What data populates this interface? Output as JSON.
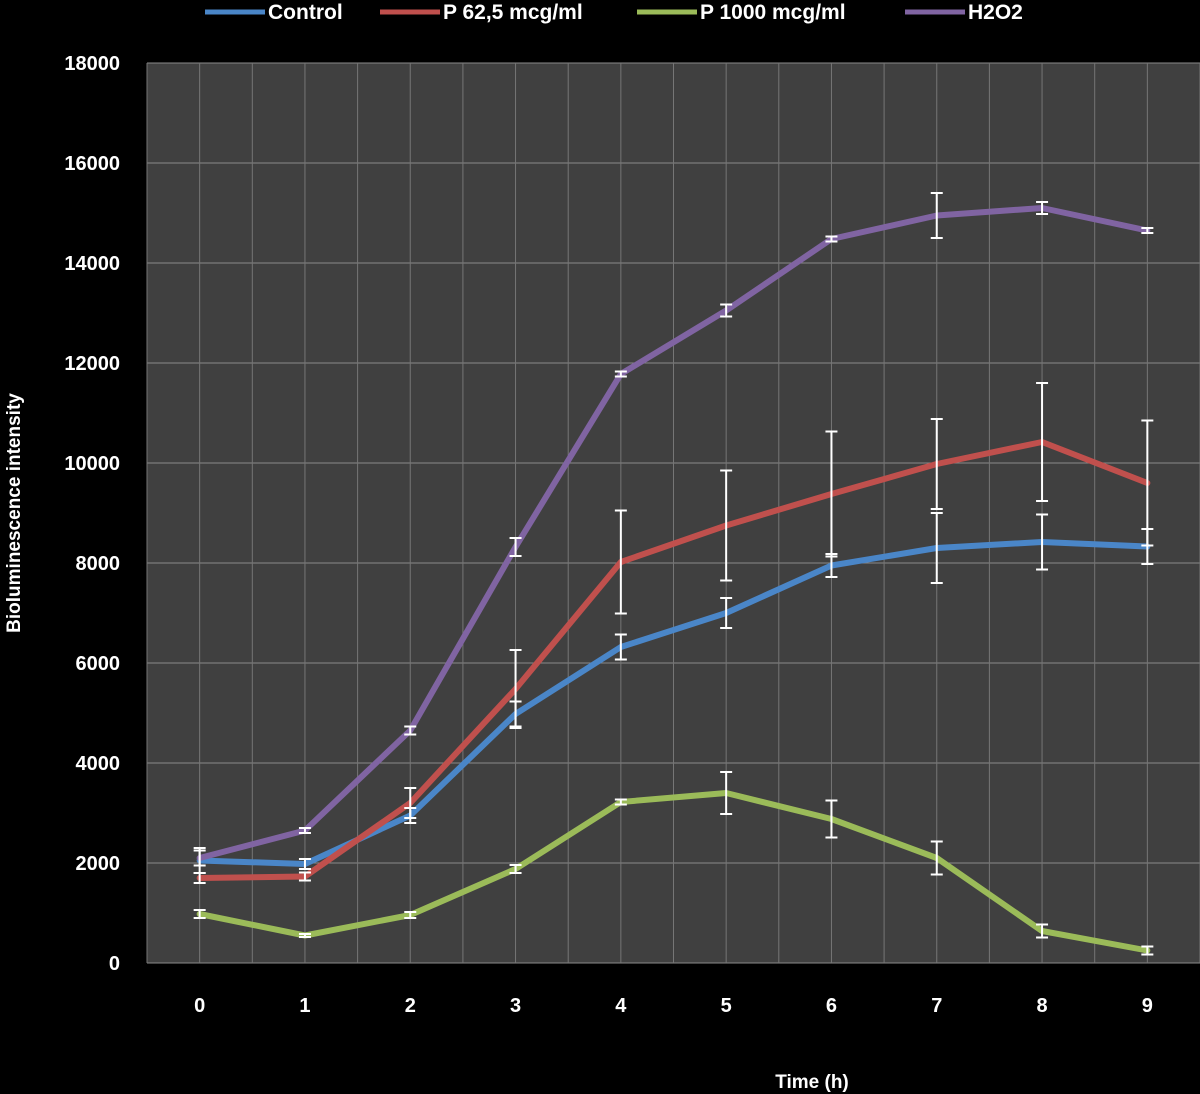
{
  "chart_data": {
    "type": "line",
    "title": "",
    "xlabel": "Time (h)",
    "ylabel": "Bioluminescence intensity",
    "x": [
      0,
      1,
      2,
      3,
      4,
      5,
      6,
      7,
      8,
      9
    ],
    "xlim": [
      -0.5,
      9.5
    ],
    "ylim": [
      0,
      18000
    ],
    "yticks": [
      0,
      2000,
      4000,
      6000,
      8000,
      10000,
      12000,
      14000,
      16000,
      18000
    ],
    "grid": true,
    "legend": "top",
    "error_bars": true,
    "series": [
      {
        "name": "Control",
        "color": "#4a86c8",
        "values": [
          2050,
          1980,
          2950,
          4980,
          6320,
          7000,
          7950,
          8300,
          8420,
          8330
        ],
        "errors": [
          250,
          100,
          150,
          250,
          250,
          300,
          230,
          700,
          550,
          350
        ]
      },
      {
        "name": "P 62,5 mcg/ml",
        "color": "#c0504d",
        "values": [
          1700,
          1730,
          3200,
          5480,
          8020,
          8750,
          9380,
          9980,
          10420,
          9600
        ],
        "errors": [
          100,
          80,
          300,
          780,
          1030,
          1100,
          1250,
          900,
          1180,
          1250
        ]
      },
      {
        "name": "P 1000 mcg/ml",
        "color": "#9bbb59",
        "values": [
          980,
          550,
          960,
          1880,
          3220,
          3400,
          2880,
          2100,
          640,
          250
        ],
        "errors": [
          80,
          30,
          60,
          80,
          50,
          420,
          370,
          330,
          130,
          80
        ]
      },
      {
        "name": "H2O2",
        "color": "#8064a2",
        "values": [
          2100,
          2650,
          4650,
          8320,
          11780,
          13050,
          14480,
          14950,
          15100,
          14650
        ],
        "errors": [
          150,
          50,
          80,
          180,
          50,
          120,
          50,
          450,
          120,
          50
        ]
      }
    ]
  }
}
